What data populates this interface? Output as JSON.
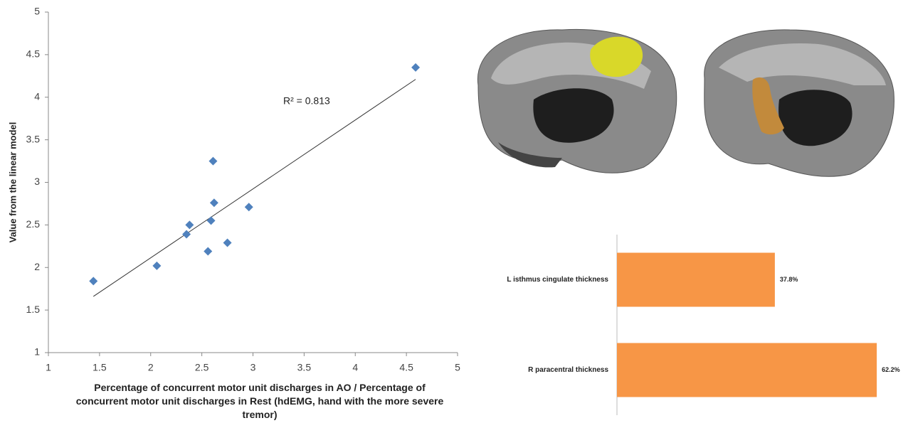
{
  "chart_data": [
    {
      "type": "scatter",
      "x": [
        1.44,
        2.06,
        2.35,
        2.38,
        2.56,
        2.59,
        2.62,
        2.61,
        2.75,
        2.96,
        4.59
      ],
      "values": [
        1.84,
        2.02,
        2.39,
        2.5,
        2.19,
        2.55,
        2.76,
        3.25,
        2.29,
        2.71,
        4.35
      ],
      "color": "#4f81bd",
      "trendline": {
        "x": [
          1.44,
          4.59
        ],
        "values": [
          1.66,
          4.21
        ]
      },
      "annotation": "R² = 0.813",
      "xlim": [
        1,
        5
      ],
      "ylim": [
        1,
        5
      ],
      "xticks": [
        1,
        1.5,
        2,
        2.5,
        3,
        3.5,
        4,
        4.5,
        5
      ],
      "yticks": [
        1,
        1.5,
        2,
        2.5,
        3,
        3.5,
        4,
        4.5,
        5
      ],
      "xlabel": "Percentage of concurrent motor unit discharges in AO / Percentage of concurrent motor unit discharges in Rest (hdEMG, hand with the more severe tremor)",
      "ylabel": "Value from the linear model"
    },
    {
      "type": "hbar",
      "categories": [
        "L isthmus cingulate thickness",
        "R paracentral thickness"
      ],
      "values": [
        37.8,
        62.2
      ],
      "value_labels": [
        "37.8%",
        "62.2%"
      ],
      "color": "#f79646"
    }
  ]
}
